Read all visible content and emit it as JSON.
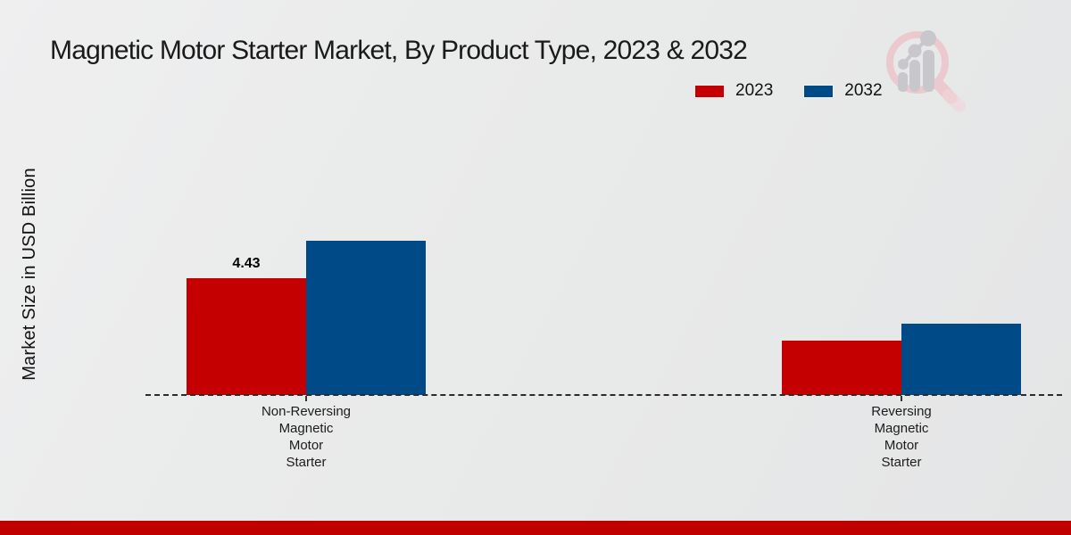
{
  "title": "Magnetic Motor Starter Market, By Product Type, 2023 & 2032",
  "watermark": {
    "icon": "magnifier-bar-chart-logo"
  },
  "colors": {
    "accent_red": "#c40000",
    "accent_blue": "#004a87",
    "footer_stripe": "#c00000",
    "background": "#e9eaea",
    "baseline_dash": "#2b2b2b",
    "watermark_pink": "#ecc9ce",
    "watermark_gray": "#c8c8cc"
  },
  "chart_data": {
    "type": "bar",
    "title": "Magnetic Motor Starter Market, By Product Type, 2023 & 2032",
    "xlabel": "",
    "ylabel": "Market Size in USD Billion",
    "categories": [
      "Non-Reversing Magnetic Motor Starter",
      "Reversing Magnetic Motor Starter"
    ],
    "category_label_lines": [
      [
        "Non-Reversing",
        "Magnetic",
        "Motor",
        "Starter"
      ],
      [
        "Reversing",
        "Magnetic",
        "Motor",
        "Starter"
      ]
    ],
    "series": [
      {
        "name": "2023",
        "color": "#c40000",
        "values": [
          4.43,
          2.05
        ]
      },
      {
        "name": "2032",
        "color": "#004a87",
        "values": [
          5.85,
          2.7
        ]
      }
    ],
    "value_labels": [
      [
        "4.43",
        null
      ],
      [
        null,
        null
      ]
    ],
    "ylim": [
      0,
      6.5
    ],
    "grid": false,
    "legend_position": "top-right",
    "baseline_style": "dashed"
  }
}
